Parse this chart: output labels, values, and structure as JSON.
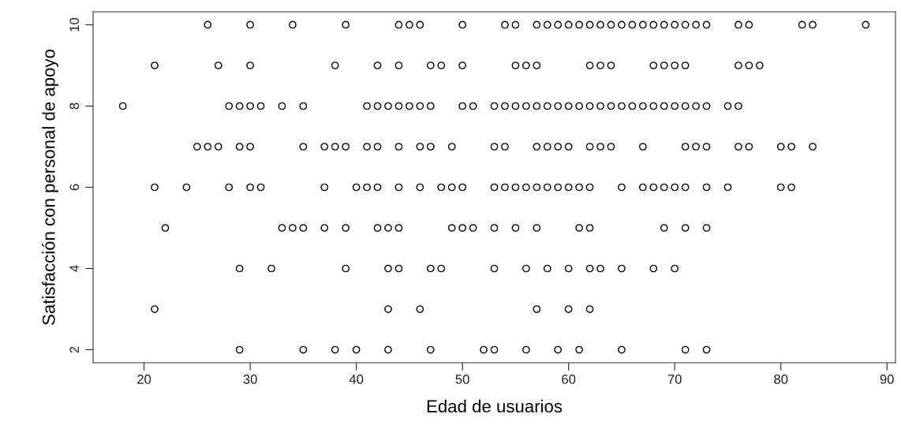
{
  "chart_data": {
    "type": "scatter",
    "xlabel": "Edad de usuarios",
    "ylabel": "Satisfacción con personal de apoyo",
    "xlim": [
      15.2,
      90.8
    ],
    "ylim": [
      1.68,
      10.32
    ],
    "xticks": [
      20,
      30,
      40,
      50,
      60,
      70,
      80,
      90
    ],
    "yticks": [
      2,
      4,
      6,
      8,
      10
    ],
    "grid": false,
    "marker": "circle",
    "series": [
      {
        "color": "#000000",
        "x": [
          26,
          30,
          34,
          39,
          44,
          45,
          46,
          50,
          54,
          55,
          57,
          58,
          59,
          60,
          61,
          62,
          63,
          64,
          65,
          66,
          67,
          68,
          69,
          70,
          71,
          72,
          73,
          76,
          77,
          82,
          83,
          88,
          21,
          27,
          30,
          38,
          42,
          44,
          47,
          48,
          50,
          55,
          56,
          57,
          62,
          63,
          64,
          68,
          69,
          70,
          71,
          76,
          77,
          78,
          18,
          28,
          29,
          30,
          31,
          33,
          35,
          41,
          42,
          43,
          44,
          45,
          46,
          47,
          50,
          51,
          53,
          54,
          55,
          56,
          57,
          58,
          59,
          60,
          61,
          62,
          63,
          64,
          65,
          66,
          67,
          68,
          69,
          70,
          71,
          72,
          73,
          75,
          76,
          25,
          26,
          27,
          29,
          30,
          35,
          37,
          38,
          39,
          41,
          42,
          44,
          46,
          47,
          49,
          53,
          54,
          57,
          58,
          59,
          60,
          62,
          63,
          64,
          67,
          71,
          72,
          73,
          76,
          77,
          80,
          81,
          83,
          21,
          24,
          28,
          30,
          31,
          37,
          40,
          41,
          42,
          44,
          46,
          48,
          49,
          50,
          53,
          54,
          55,
          56,
          57,
          58,
          59,
          60,
          61,
          62,
          65,
          67,
          68,
          69,
          70,
          71,
          73,
          75,
          80,
          81,
          22,
          33,
          34,
          35,
          37,
          39,
          42,
          43,
          44,
          49,
          50,
          51,
          53,
          55,
          57,
          61,
          62,
          69,
          71,
          73,
          29,
          32,
          39,
          43,
          44,
          47,
          48,
          53,
          56,
          58,
          60,
          62,
          63,
          65,
          68,
          70,
          21,
          43,
          46,
          57,
          60,
          62,
          29,
          35,
          38,
          40,
          43,
          47,
          52,
          53,
          56,
          59,
          61,
          65,
          71,
          73
        ],
        "values": [
          10,
          10,
          10,
          10,
          10,
          10,
          10,
          10,
          10,
          10,
          10,
          10,
          10,
          10,
          10,
          10,
          10,
          10,
          10,
          10,
          10,
          10,
          10,
          10,
          10,
          10,
          10,
          10,
          10,
          10,
          10,
          10,
          9,
          9,
          9,
          9,
          9,
          9,
          9,
          9,
          9,
          9,
          9,
          9,
          9,
          9,
          9,
          9,
          9,
          9,
          9,
          9,
          9,
          9,
          8,
          8,
          8,
          8,
          8,
          8,
          8,
          8,
          8,
          8,
          8,
          8,
          8,
          8,
          8,
          8,
          8,
          8,
          8,
          8,
          8,
          8,
          8,
          8,
          8,
          8,
          8,
          8,
          8,
          8,
          8,
          8,
          8,
          8,
          8,
          8,
          8,
          8,
          8,
          7,
          7,
          7,
          7,
          7,
          7,
          7,
          7,
          7,
          7,
          7,
          7,
          7,
          7,
          7,
          7,
          7,
          7,
          7,
          7,
          7,
          7,
          7,
          7,
          7,
          7,
          7,
          7,
          7,
          7,
          7,
          7,
          7,
          6,
          6,
          6,
          6,
          6,
          6,
          6,
          6,
          6,
          6,
          6,
          6,
          6,
          6,
          6,
          6,
          6,
          6,
          6,
          6,
          6,
          6,
          6,
          6,
          6,
          6,
          6,
          6,
          6,
          6,
          6,
          6,
          6,
          6,
          5,
          5,
          5,
          5,
          5,
          5,
          5,
          5,
          5,
          5,
          5,
          5,
          5,
          5,
          5,
          5,
          5,
          5,
          5,
          5,
          4,
          4,
          4,
          4,
          4,
          4,
          4,
          4,
          4,
          4,
          4,
          4,
          4,
          4,
          4,
          4,
          3,
          3,
          3,
          3,
          3,
          3,
          2,
          2,
          2,
          2,
          2,
          2,
          2,
          2,
          2,
          2,
          2,
          2,
          2,
          2
        ]
      }
    ]
  }
}
